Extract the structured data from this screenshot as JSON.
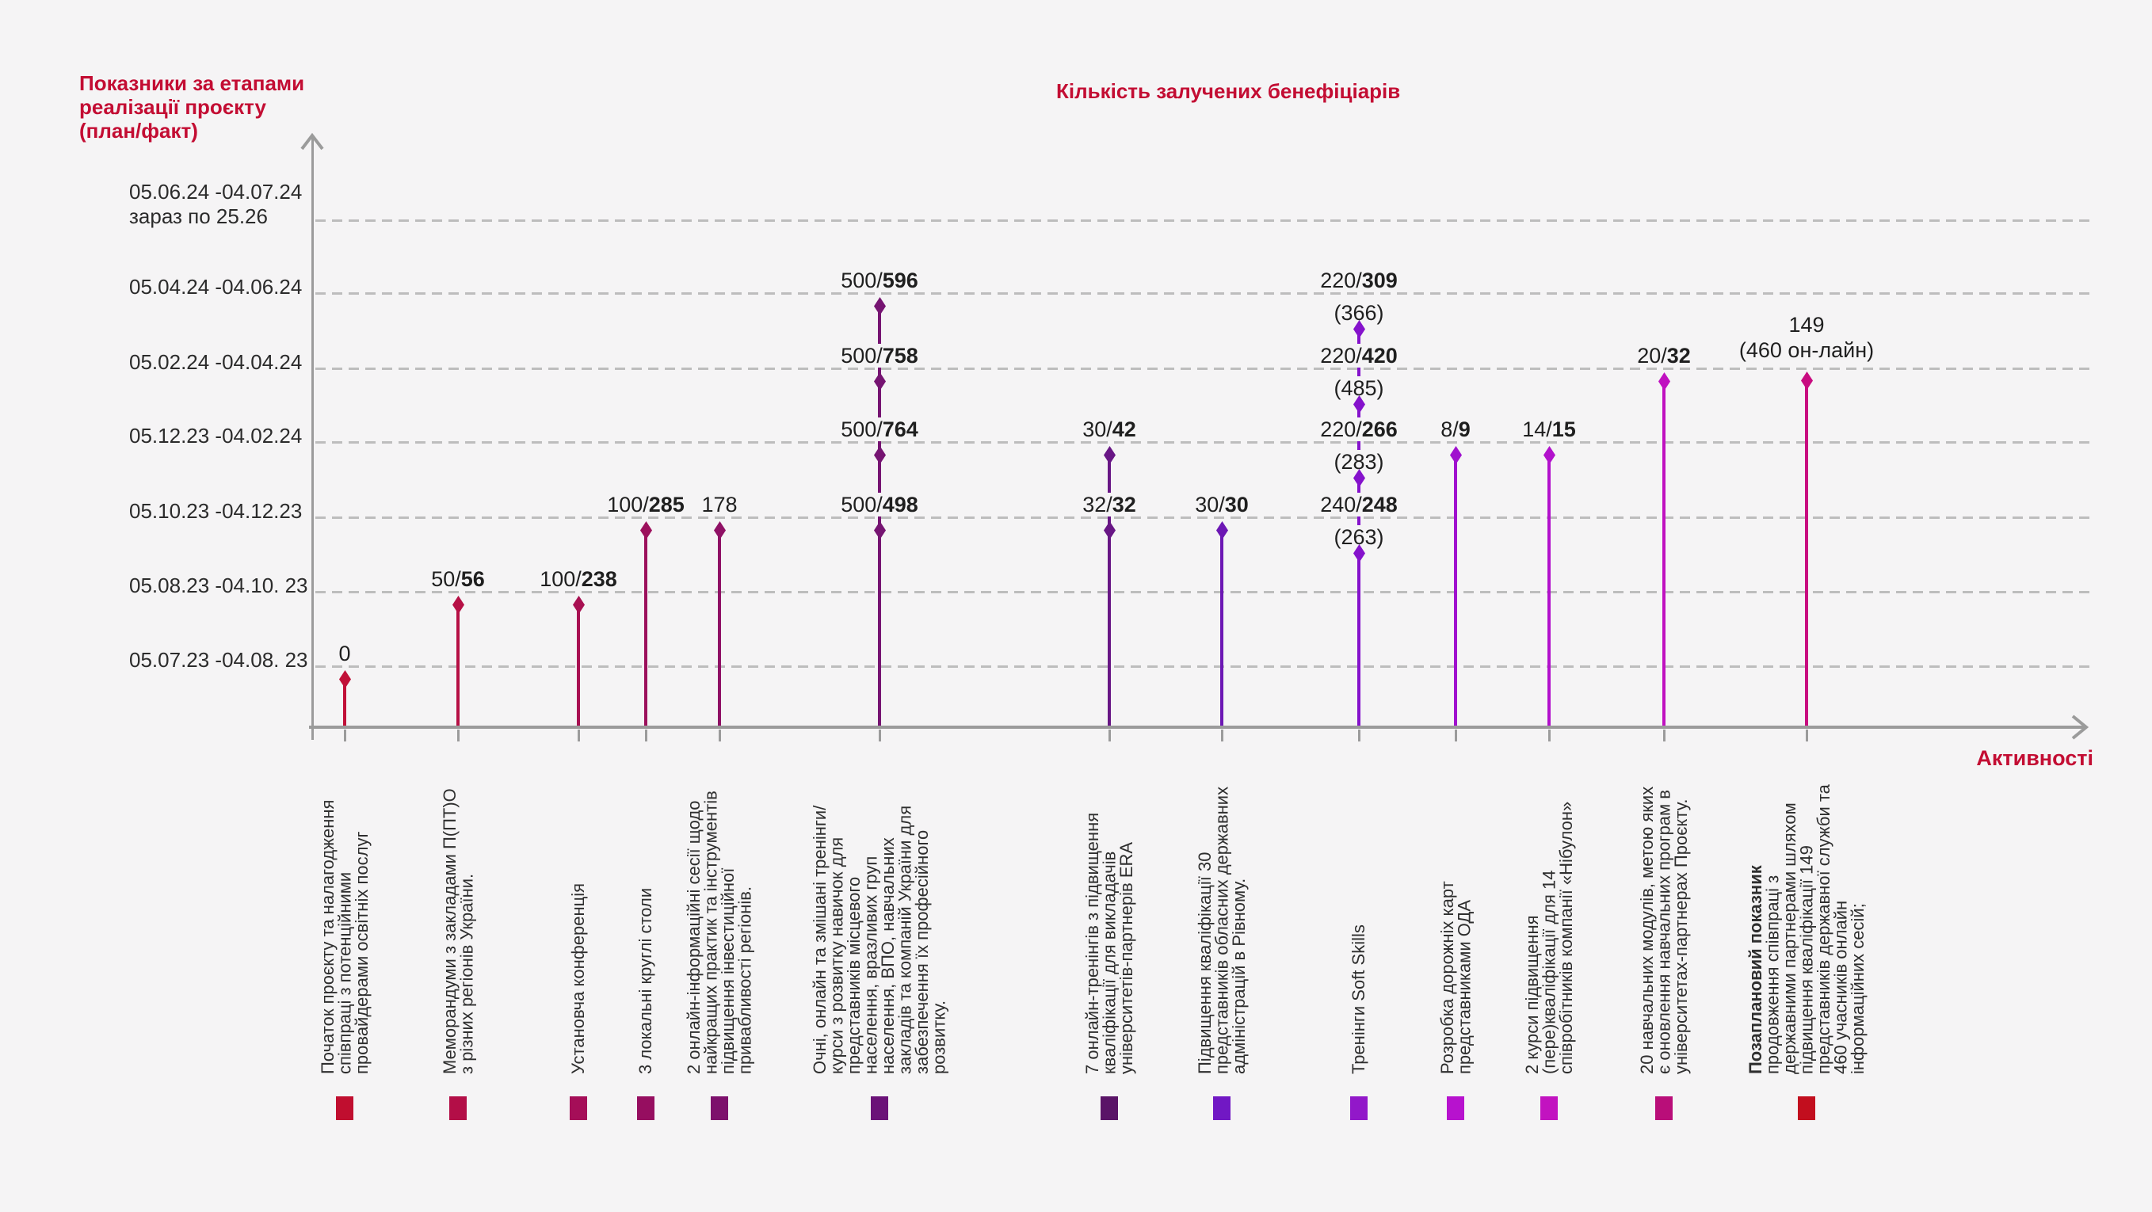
{
  "titles": {
    "left": "Показники за етапами\nреалізації проєкту\n(план/факт)",
    "center": "Кількість залучених бенефіціарів"
  },
  "chart_data": {
    "type": "scatter",
    "variant": "lollipop-stem-timeline",
    "title": "Показники за етапами реалізації проєкту (план/факт)",
    "subtitle": "Кількість залучених бенефіціарів",
    "xlabel": "Активності",
    "grid": "dashed-horizontal",
    "legend_position": "bottom",
    "y_categories": [
      "05.06.24 -04.07.24\nзараз по 25.26",
      "05.04.24 -04.06.24",
      "05.02.24 -04.04.24",
      "05.12.23 -04.02.24",
      "05.10.23 -04.12.23",
      "05.08.23 -04.10. 23",
      "05.07.23 -04.08. 23"
    ],
    "series": [
      {
        "name": "Початок проєкту та налагодження співпраці з потенційними провайдерами освітніх послуг",
        "color": "#C11038",
        "legend_color": "#C00E2F",
        "points": [
          {
            "period_index": 6,
            "label": "0",
            "plan": null,
            "fact": 0
          }
        ]
      },
      {
        "name": "Меморандуми з закладами П(ПТ)О з різних регіонів України.",
        "color": "#B61045",
        "legend_color": "#B30E47",
        "points": [
          {
            "period_index": 5,
            "label": "50/56",
            "plan": 50,
            "fact": 56
          }
        ]
      },
      {
        "name": "Установча конференція",
        "color": "#A81052",
        "legend_color": "#A50E58",
        "points": [
          {
            "period_index": 5,
            "label": "100/238",
            "plan": 100,
            "fact": 238
          }
        ]
      },
      {
        "name": "3 локальні круглі столи",
        "color": "#9C105C",
        "legend_color": "#960E60",
        "points": [
          {
            "period_index": 4,
            "label": "100/285",
            "plan": 100,
            "fact": 285
          }
        ]
      },
      {
        "name": "2 онлайн-інформаційні сесії щодо найкращих практик та інструментів підвищення інвестиційної привабливості регіонів.",
        "color": "#8F1065",
        "legend_color": "#7D106C",
        "points": [
          {
            "period_index": 4,
            "label": "178",
            "plan": null,
            "fact": 178
          }
        ]
      },
      {
        "name": "Очні, онлайн та змішані тренінги/курси з розвитку навичок для представників місцевого населення, вразливих груп населення, ВПО, навчальних закладів та компаній України для забезпечення їх професійного розвитку.",
        "color": "#761472",
        "legend_color": "#6B1278",
        "points": [
          {
            "period_index": 1,
            "label": "500/596",
            "plan": 500,
            "fact": 596
          },
          {
            "period_index": 2,
            "label": "500/758",
            "plan": 500,
            "fact": 758
          },
          {
            "period_index": 3,
            "label": "500/764",
            "plan": 500,
            "fact": 764
          },
          {
            "period_index": 4,
            "label": "500/498",
            "plan": 500,
            "fact": 498
          }
        ]
      },
      {
        "name": "7 онлайн-тренінгів з підвищення кваліфікації для викладачів університетів-партнерів ERA",
        "color": "#681685",
        "legend_color": "#5A1467",
        "points": [
          {
            "period_index": 3,
            "label": "30/42",
            "plan": 30,
            "fact": 42
          },
          {
            "period_index": 4,
            "label": "32/32",
            "plan": 32,
            "fact": 32
          }
        ]
      },
      {
        "name": "Підвищення кваліфікації 30 представників обласних державних адміністрацій в Рівному.",
        "color": "#6C17B4",
        "legend_color": "#7118C4",
        "points": [
          {
            "period_index": 4,
            "label": "30/30",
            "plan": 30,
            "fact": 30
          }
        ]
      },
      {
        "name": "Тренінги Soft Skills",
        "color": "#8512CC",
        "legend_color": "#9218C9",
        "points": [
          {
            "period_index": 1,
            "label": "220/309",
            "plan": 220,
            "fact": 309,
            "note": "(366)",
            "note_position": "below"
          },
          {
            "period_index": 2,
            "label": "220/420",
            "plan": 220,
            "fact": 420,
            "note": "(485)",
            "note_position": "below"
          },
          {
            "period_index": 3,
            "label": "220/266",
            "plan": 220,
            "fact": 266,
            "note": "(283)",
            "note_position": "below"
          },
          {
            "period_index": 4,
            "label": "240/248",
            "plan": 240,
            "fact": 248,
            "note": "(263)",
            "note_position": "below"
          }
        ]
      },
      {
        "name": "Розробка дорожніх карт представниками ОДА",
        "color": "#A011CE",
        "legend_color": "#B712CE",
        "points": [
          {
            "period_index": 3,
            "label": "8/9",
            "plan": 8,
            "fact": 9
          }
        ]
      },
      {
        "name": "2 курси підвищення (пере)кваліфікації для 14 співробітників компанії «Нібулон»",
        "color": "#B211CC",
        "legend_color": "#C213C0",
        "points": [
          {
            "period_index": 3,
            "label": "14/15",
            "plan": 14,
            "fact": 15
          }
        ]
      },
      {
        "name": "20 навчальних модулів, метою яких є оновлення навчальних програм в університетах-партнерах Проєкту.",
        "color": "#C011C0",
        "legend_color": "#B90E79",
        "points": [
          {
            "period_index": 2,
            "label": "20/32",
            "plan": 20,
            "fact": 32
          }
        ]
      },
      {
        "name": "Позаплановий показник продовження співпраці з державними партнерами шляхом підвищення кваліфікації 149 представників державної служби та 460 учасників онлайн інформаційних сесій;",
        "name_bold_prefix": "Позаплановий показник",
        "color": "#C80C80",
        "legend_color": "#C20E1E",
        "points": [
          {
            "period_index": 2,
            "label": "149",
            "plan": null,
            "fact": 149,
            "note": "(460 он-лайн)",
            "note_position": "above"
          }
        ]
      }
    ]
  }
}
